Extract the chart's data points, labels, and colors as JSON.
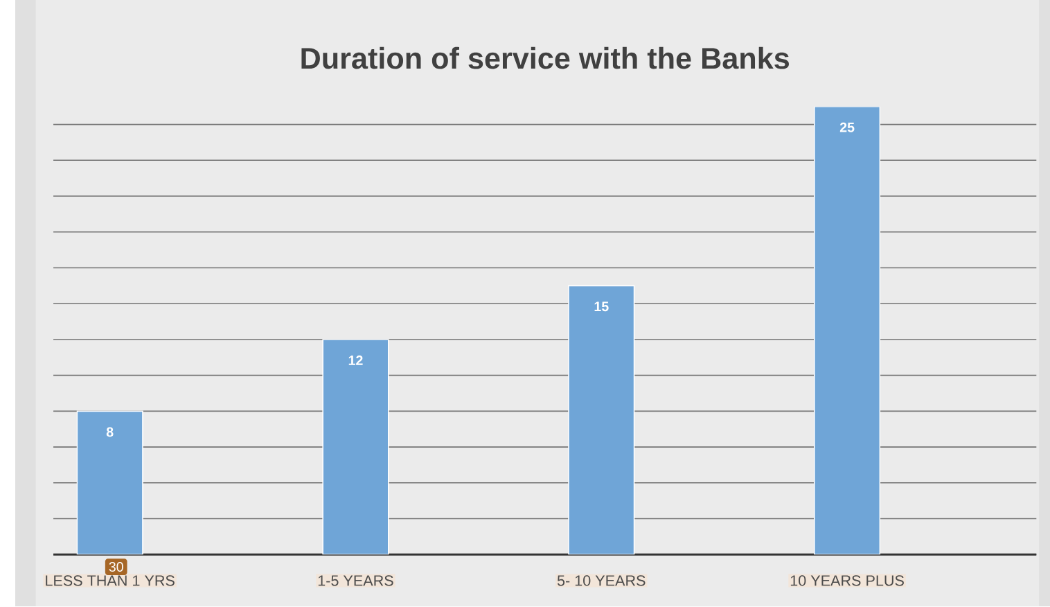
{
  "chart_data": {
    "type": "bar",
    "title": "Duration of service with the Banks",
    "categories": [
      "LESS THAN 1 YRS",
      "1-5 YEARS",
      "5- 10 YEARS",
      "10 YEARS PLUS"
    ],
    "values": [
      8,
      12,
      15,
      25
    ],
    "color": "#6fa5d7",
    "data_labels": true,
    "grid": "y",
    "tick_labels": "x",
    "annotations": [
      "30"
    ]
  }
}
